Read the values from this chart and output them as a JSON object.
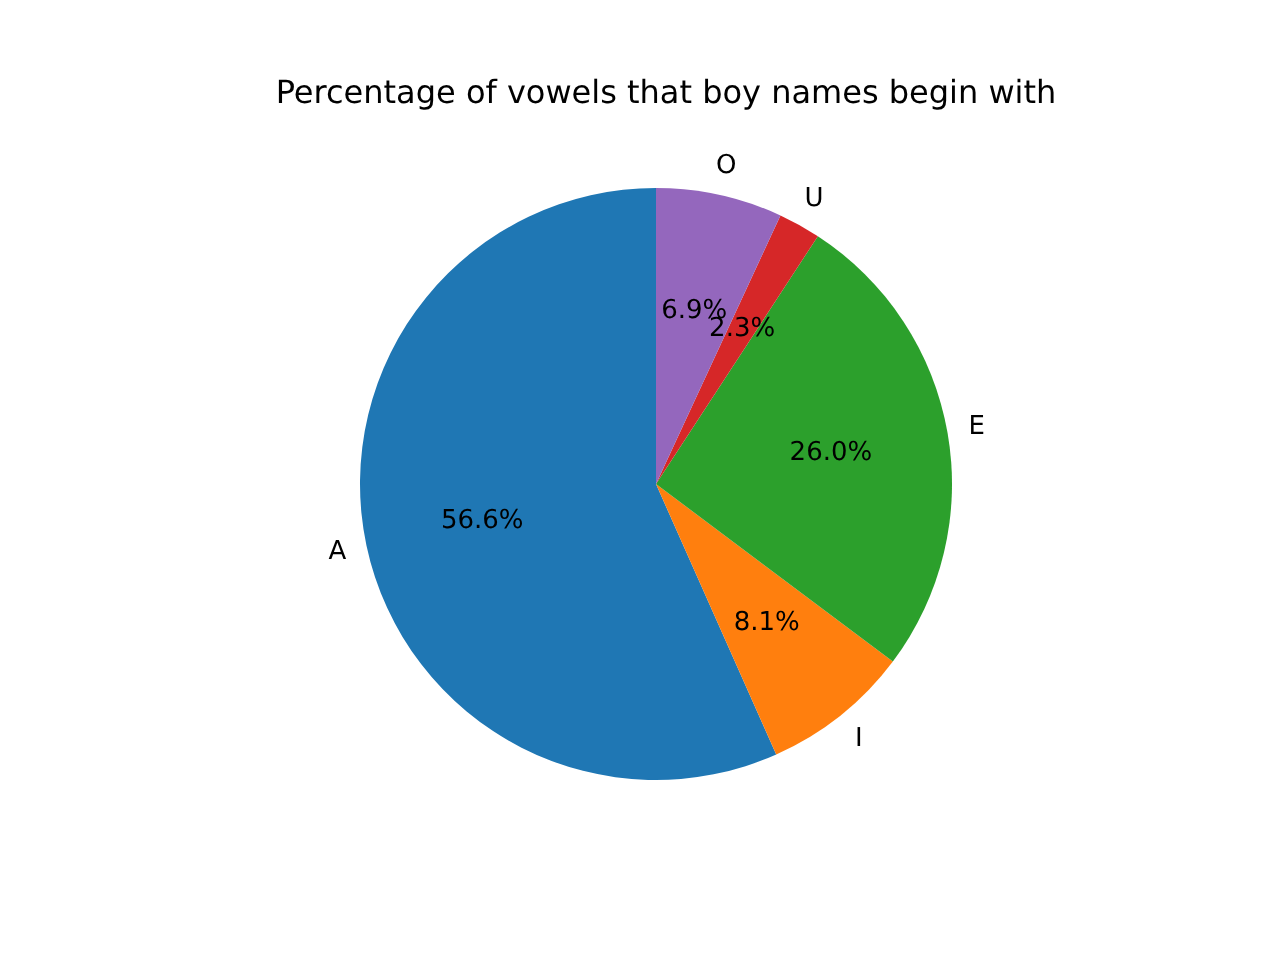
{
  "chart_data": {
    "type": "pie",
    "title": "Percentage of vowels that boy names begin with",
    "categories": [
      "A",
      "I",
      "E",
      "U",
      "O"
    ],
    "values": [
      56.6,
      8.1,
      26.0,
      2.3,
      6.9
    ],
    "value_labels": [
      "56.6%",
      "8.1%",
      "26.0%",
      "2.3%",
      "6.9%"
    ],
    "colors": [
      "#1f77b4",
      "#ff7f0e",
      "#2ca02c",
      "#d62728",
      "#9467bd"
    ],
    "legend": false
  }
}
